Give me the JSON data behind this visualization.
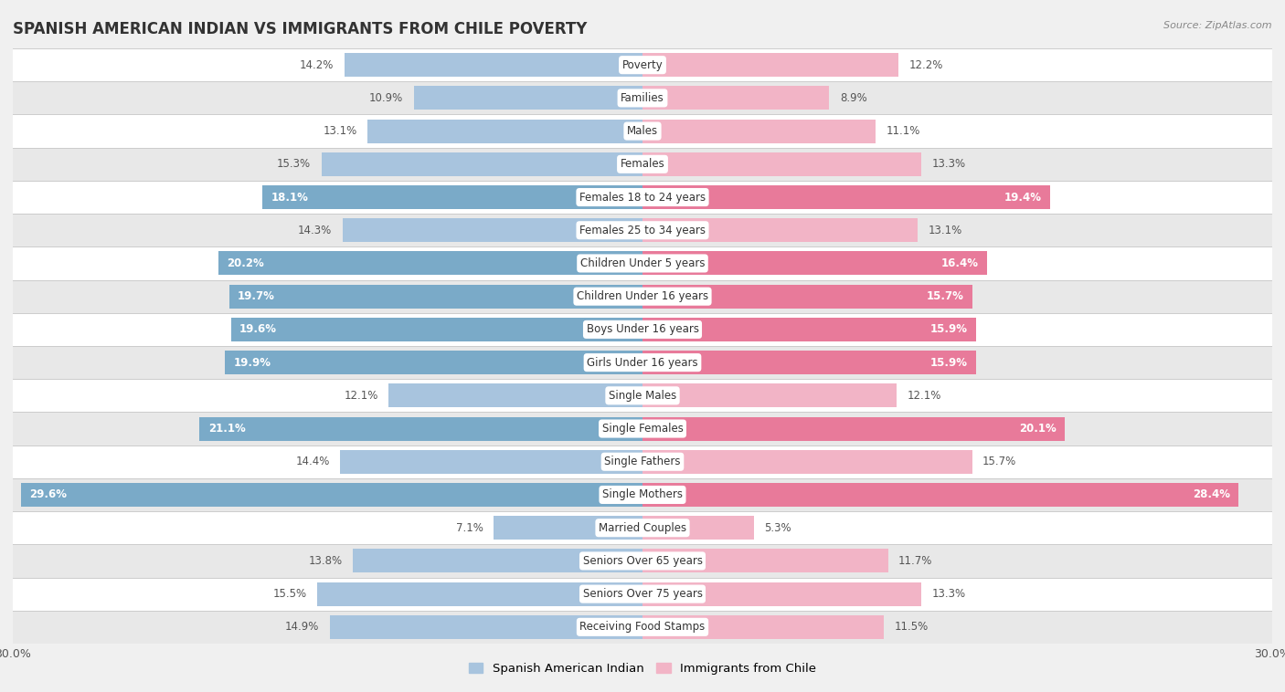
{
  "title": "SPANISH AMERICAN INDIAN VS IMMIGRANTS FROM CHILE POVERTY",
  "source": "Source: ZipAtlas.com",
  "categories": [
    "Poverty",
    "Families",
    "Males",
    "Females",
    "Females 18 to 24 years",
    "Females 25 to 34 years",
    "Children Under 5 years",
    "Children Under 16 years",
    "Boys Under 16 years",
    "Girls Under 16 years",
    "Single Males",
    "Single Females",
    "Single Fathers",
    "Single Mothers",
    "Married Couples",
    "Seniors Over 65 years",
    "Seniors Over 75 years",
    "Receiving Food Stamps"
  ],
  "left_values": [
    14.2,
    10.9,
    13.1,
    15.3,
    18.1,
    14.3,
    20.2,
    19.7,
    19.6,
    19.9,
    12.1,
    21.1,
    14.4,
    29.6,
    7.1,
    13.8,
    15.5,
    14.9
  ],
  "right_values": [
    12.2,
    8.9,
    11.1,
    13.3,
    19.4,
    13.1,
    16.4,
    15.7,
    15.9,
    15.9,
    12.1,
    20.1,
    15.7,
    28.4,
    5.3,
    11.7,
    13.3,
    11.5
  ],
  "left_color_normal": "#a8c4de",
  "right_color_normal": "#f2b4c6",
  "left_color_highlight": "#7aaac8",
  "right_color_highlight": "#e87a9a",
  "highlight_rows": [
    4,
    6,
    7,
    8,
    9,
    11,
    13
  ],
  "left_label": "Spanish American Indian",
  "right_label": "Immigrants from Chile",
  "xlim": 30.0,
  "bg_color": "#f0f0f0",
  "row_bg_even": "#ffffff",
  "row_bg_odd": "#e8e8e8",
  "title_fontsize": 12,
  "tick_fontsize": 9,
  "bar_fontsize": 8.5,
  "cat_fontsize": 8.5,
  "bar_height": 0.72
}
